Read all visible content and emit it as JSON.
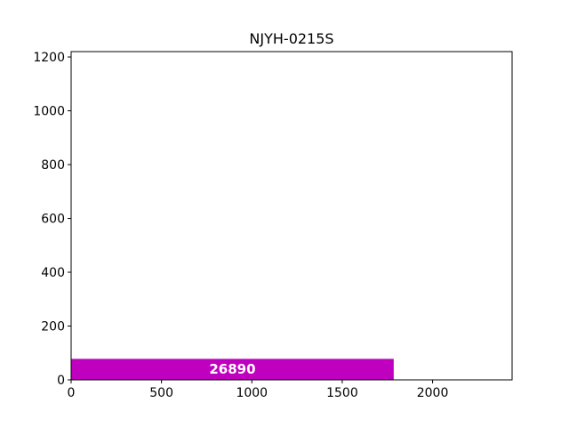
{
  "chart_data": {
    "type": "bar",
    "orientation": "horizontal",
    "title": "NJYH-0215S",
    "xlabel": "",
    "ylabel": "",
    "xlim": [
      0,
      2440
    ],
    "ylim": [
      0,
      1220
    ],
    "x_ticks": [
      0,
      500,
      1000,
      1500,
      2000
    ],
    "y_ticks": [
      0,
      200,
      400,
      600,
      800,
      1000,
      1200
    ],
    "grid": false,
    "bars": [
      {
        "x_start": 0,
        "x_end": 1785,
        "y_start": 0,
        "y_end": 78,
        "label": "26890",
        "color": "#bf00bf"
      }
    ]
  }
}
